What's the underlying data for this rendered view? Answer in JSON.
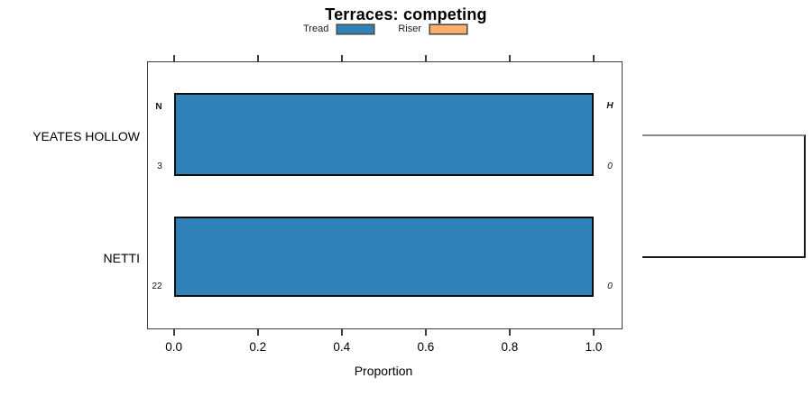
{
  "title": "Terraces: competing",
  "legend": {
    "items": [
      {
        "label": "Tread",
        "color": "#2E82B8"
      },
      {
        "label": "Riser",
        "color": "#FDAE6B"
      }
    ]
  },
  "chart_data": {
    "type": "bar",
    "orientation": "horizontal",
    "title": "Terraces: competing",
    "categories": [
      "YEATES HOLLOW",
      "NETTI"
    ],
    "series": [
      {
        "name": "Tread",
        "color": "#2E82B8",
        "values": [
          1.0,
          1.0
        ]
      },
      {
        "name": "Riser",
        "color": "#FDAE6B",
        "values": [
          0.0,
          0.0
        ]
      }
    ],
    "xlabel": "Proportion",
    "xlim": [
      0.0,
      1.0
    ],
    "xticks": [
      "0.0",
      "0.2",
      "0.4",
      "0.6",
      "0.8",
      "1.0"
    ],
    "grid": false,
    "legend_position": "top",
    "panel_annotations": {
      "left_header": "N",
      "right_header": "H",
      "left_values": [
        "3",
        "22"
      ],
      "right_values": [
        "0",
        "0"
      ]
    }
  }
}
